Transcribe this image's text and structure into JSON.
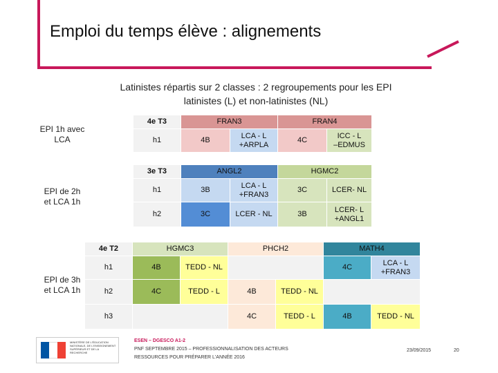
{
  "title": "Emploi du temps élève : alignements",
  "subtitle_line1": "Latinistes répartis sur 2 classes : 2 regroupements pour les EPI",
  "subtitle_line2": "latinistes (L) et non-latinistes (NL)",
  "side_labels": {
    "a1": "EPI 1h avec",
    "a2": "LCA",
    "b1": "EPI de 2h",
    "b2": "et LCA 1h",
    "c1": "EPI de 3h",
    "c2": "et LCA 1h"
  },
  "table1": {
    "level": "4e T3",
    "subj1": "FRAN3",
    "subj2": "FRAN4",
    "row_h": "h1",
    "c1": "4B",
    "c2a": "LCA - L",
    "c2b": "+ARPLA",
    "c3": "4C",
    "c4a": "ICC - L",
    "c4b": "–EDMUS"
  },
  "table2": {
    "level": "3e T3",
    "subj1": "ANGL2",
    "subj2": "HGMC2",
    "r1_h": "h1",
    "r1_c1": "3B",
    "r1_c2a": "LCA - L",
    "r1_c2b": "+FRAN3",
    "r1_c3": "3C",
    "r1_c4": "LCER- NL",
    "r2_h": "h2",
    "r2_c1": "3C",
    "r2_c2": "LCER - NL",
    "r2_c3": "3B",
    "r2_c4a": "LCER- L",
    "r2_c4b": "+ANGL1"
  },
  "table3": {
    "level": "4e T2",
    "subj1": "HGMC3",
    "subj2": "PHCH2",
    "subj3": "MATH4",
    "r1_h": "h1",
    "r1_c1": "4B",
    "r1_c2": "TEDD - NL",
    "r1_c5": "4C",
    "r1_c6a": "LCA - L",
    "r1_c6b": "+FRAN3",
    "r2_h": "h2",
    "r2_c1": "4C",
    "r2_c2": "TEDD - L",
    "r2_c3": "4B",
    "r2_c4": "TEDD - NL",
    "r3_h": "h3",
    "r3_c3": "4C",
    "r3_c4": "TEDD - L",
    "r3_c5": "4B",
    "r3_c6": "TEDD - NL"
  },
  "footer": {
    "line1": "ESEN – DGESCO A1-2",
    "line2": "PNF SEPTEMBRE 2015 – PROFESSIONNALISATION DES ACTEURS",
    "line3": "RESSOURCES POUR PRÉPARER L'ANNÉE 2016",
    "date": "23/09/2015",
    "page": "20"
  },
  "logo": {
    "text": "MINISTÈRE DE L'ÉDUCATION NATIONALE, DE L'ENSEIGNEMENT SUPÉRIEUR ET DE LA RECHERCHE",
    "flag_colors": [
      "#0055a4",
      "#ffffff",
      "#ef4135"
    ]
  }
}
